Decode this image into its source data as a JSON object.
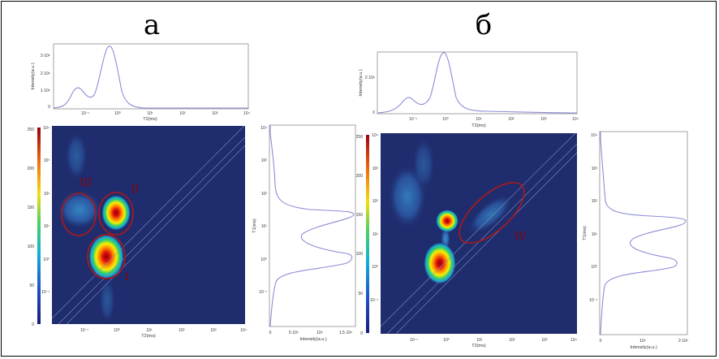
{
  "chart_data": [
    {
      "type": "heatmap",
      "panel": "а",
      "top_projection": {
        "type": "line",
        "xlabel": "T2(ms)",
        "ylabel": "Intensity(a.u.)",
        "x_ticks": [
          "10⁻¹",
          "10⁰",
          "10¹",
          "10²",
          "10³",
          "10⁴"
        ],
        "y_ticks": [
          "0",
          "1·10⁶",
          "2·10⁶",
          "3·10⁶"
        ],
        "peaks": [
          {
            "t2_ms": 0.5,
            "intensity": 1100000.0
          },
          {
            "t2_ms": 0.9,
            "intensity": 3500000.0
          }
        ]
      },
      "right_projection": {
        "type": "line",
        "xlabel": "Intensity(a.u.)",
        "ylabel": "T1(ms)",
        "x_ticks": [
          "0",
          "5·10⁵",
          "10⁶",
          "1.5·10⁶"
        ],
        "peaks": [
          {
            "t1_ms": 40,
            "intensity": 1700000.0
          },
          {
            "t1_ms": 1.5,
            "intensity": 1600000.0
          }
        ]
      },
      "map": {
        "xlabel": "T2(ms)",
        "x_ticks": [
          "10⁻¹",
          "10⁰",
          "10¹",
          "10²",
          "10³",
          "10⁴"
        ],
        "y_ticks": [
          "10⁻¹",
          "10⁰",
          "10¹",
          "10²",
          "10³",
          "10⁴"
        ],
        "colorbar": {
          "min": 0,
          "max": 250,
          "ticks": [
            "0",
            "50",
            "100",
            "150",
            "200",
            "250"
          ]
        },
        "regions": [
          "I",
          "II",
          "III"
        ]
      }
    },
    {
      "type": "heatmap",
      "panel": "б",
      "top_projection": {
        "type": "line",
        "xlabel": "T2(ms)",
        "ylabel": "Intensity(a.u.)",
        "x_ticks": [
          "10⁻¹",
          "10⁰",
          "10¹",
          "10²",
          "10³",
          "10⁴"
        ],
        "y_ticks": [
          "0",
          "2·10⁶"
        ],
        "peaks": [
          {
            "t2_ms": 0.5,
            "intensity": 1000000.0
          },
          {
            "t2_ms": 0.9,
            "intensity": 3500000.0
          }
        ]
      },
      "right_projection": {
        "type": "line",
        "xlabel": "Intensity(a.u.)",
        "ylabel": "T1(ms)",
        "x_ticks": [
          "0",
          "10⁶",
          "2·10⁶"
        ],
        "peaks": [
          {
            "t1_ms": 40,
            "intensity": 2100000.0
          },
          {
            "t1_ms": 1.5,
            "intensity": 1800000.0
          }
        ]
      },
      "map": {
        "xlabel": "T2(ms)",
        "x_ticks": [
          "10⁻¹",
          "10⁰",
          "10¹",
          "10²",
          "10³",
          "10⁴"
        ],
        "y_ticks": [
          "10⁻¹",
          "10⁰",
          "10¹",
          "10²",
          "10³",
          "10⁴"
        ],
        "colorbar": {
          "min": 0,
          "max": 250,
          "ticks": [
            "0",
            "50",
            "100",
            "150",
            "200",
            "250"
          ]
        },
        "regions": [
          "IV"
        ]
      }
    }
  ],
  "labels": {
    "left_panel": "а",
    "right_panel": "б"
  },
  "colors": {
    "map_background": "#1f2d6e",
    "curve": "#8c8cd8",
    "ellipse": "#b01818"
  }
}
